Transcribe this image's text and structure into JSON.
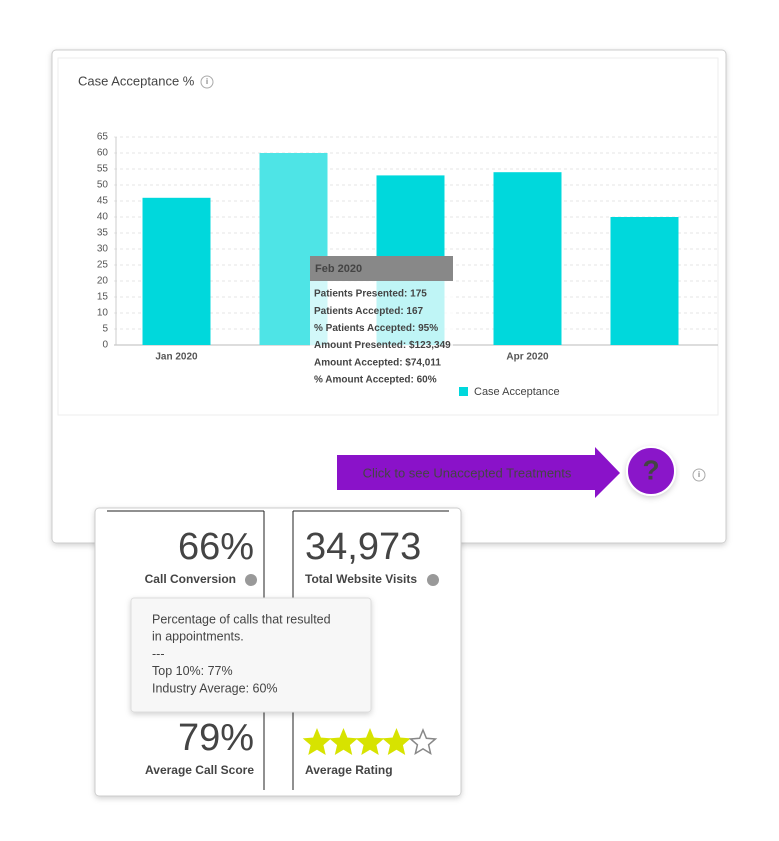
{
  "chart_data": {
    "type": "bar",
    "title": "Case Acceptance %",
    "categories": [
      "Jan 2020",
      null,
      null,
      "Apr 2020",
      null
    ],
    "series": [
      {
        "name": "Case Acceptance",
        "color": "#00d8dc",
        "values": [
          46,
          60,
          53,
          54,
          40
        ]
      }
    ],
    "highlight_color": "#4ee4e6",
    "ylim": [
      0,
      65
    ],
    "yticks": [
      0,
      5,
      10,
      15,
      20,
      25,
      30,
      35,
      40,
      45,
      50,
      55,
      60,
      65
    ],
    "grid": true,
    "tooltip": {
      "title": "Feb 2020",
      "lines": [
        "Patients Presented: 175",
        "Patients Accepted: 167",
        "% Patients Accepted: 95%",
        "Amount Presented: $123,349",
        "Amount Accepted: $74,011",
        "% Amount Accepted: 60%"
      ]
    }
  },
  "cta": {
    "label": "Click to see Unaccepted Treatments",
    "button": "?"
  },
  "stats": {
    "call_conversion": {
      "value": "66%",
      "label": "Call Conversion"
    },
    "website_visits": {
      "value": "34,973",
      "label": "Total Website Visits"
    },
    "call_score": {
      "value": "79%",
      "label": "Average Call Score"
    },
    "rating": {
      "rating": 4,
      "max": 5,
      "label": "Average Rating"
    },
    "info_tooltip": {
      "text": [
        "Percentage of calls that resulted",
        "in appointments.",
        "---",
        "Top 10%: 77%",
        "Industry Average: 60%"
      ]
    }
  }
}
